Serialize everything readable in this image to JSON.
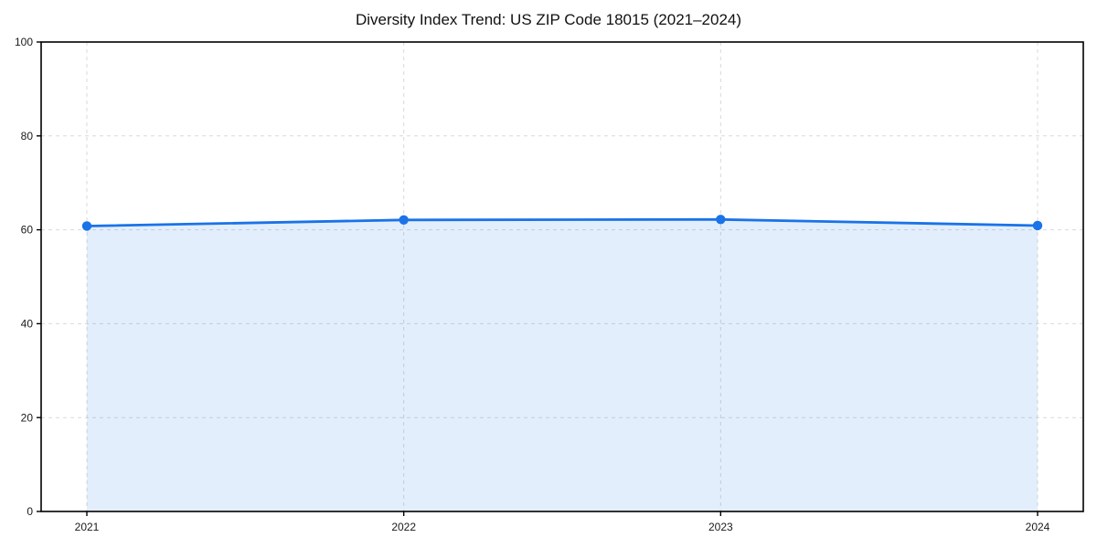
{
  "chart_data": {
    "type": "area",
    "title": "Diversity Index Trend: US ZIP Code 18015 (2021–2024)",
    "x": [
      "2021",
      "2022",
      "2023",
      "2024"
    ],
    "series": [
      {
        "name": "Diversity Index",
        "values": [
          60.8,
          62.1,
          62.2,
          60.9
        ]
      }
    ],
    "xlabel": "",
    "ylabel": "",
    "ylim": [
      0,
      100
    ],
    "yticks": [
      0,
      20,
      40,
      60,
      80,
      100
    ],
    "grid": true,
    "grid_style": "dashed",
    "legend": false,
    "colors": {
      "line": "#1a73e8",
      "marker": "#1a73e8",
      "fill": "#1a73e8",
      "fill_opacity": 0.12,
      "grid": "#d9d9d9",
      "spine": "#000000",
      "tick_label": "#1a1a1a",
      "background": "#ffffff"
    }
  }
}
